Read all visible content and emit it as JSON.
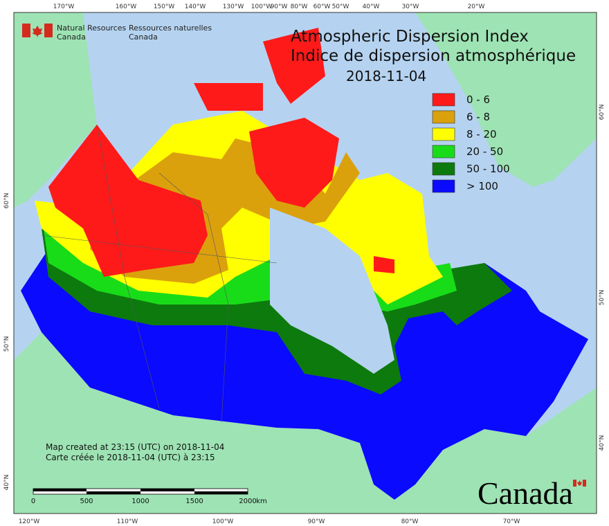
{
  "header": {
    "department_en": [
      "Natural Resources",
      "Canada"
    ],
    "department_fr": [
      "Ressources naturelles",
      "Canada"
    ]
  },
  "title": {
    "line1": "Atmospheric Dispersion Index",
    "line2": "Indice de dispersion atmosphérique",
    "date": "2018-11-04"
  },
  "legend": [
    {
      "label": "0 - 6",
      "color": "#ff1a1a"
    },
    {
      "label": "6 - 8",
      "color": "#dba10d"
    },
    {
      "label": "8 - 20",
      "color": "#ffff00"
    },
    {
      "label": "20 - 50",
      "color": "#19dc19"
    },
    {
      "label": "50 - 100",
      "color": "#0d7a0d"
    },
    {
      "label": "> 100",
      "color": "#0a0aff"
    }
  ],
  "graticule": {
    "top": [
      "170°W",
      "160°W",
      "150°W",
      "140°W",
      "130°W",
      "100°W",
      "90°W",
      "80°W",
      "60°W",
      "50°W",
      "40°W",
      "30°W",
      "20°W"
    ],
    "bottom": [
      "120°W",
      "110°W",
      "100°W",
      "90°W",
      "80°W",
      "70°W"
    ],
    "left": [
      "60°N",
      "50°N",
      "40°N"
    ],
    "right": [
      "60°N",
      "50°N",
      "40°N"
    ]
  },
  "notes": [
    "Map created at 23:15 (UTC) on 2018-11-04",
    "Carte créée le 2018-11-04 (UTC) à 23:15"
  ],
  "scale_bar": {
    "labels": [
      "0",
      "500",
      "1000",
      "1500",
      "2000"
    ],
    "unit": "km"
  },
  "wordmark": "Canada"
}
